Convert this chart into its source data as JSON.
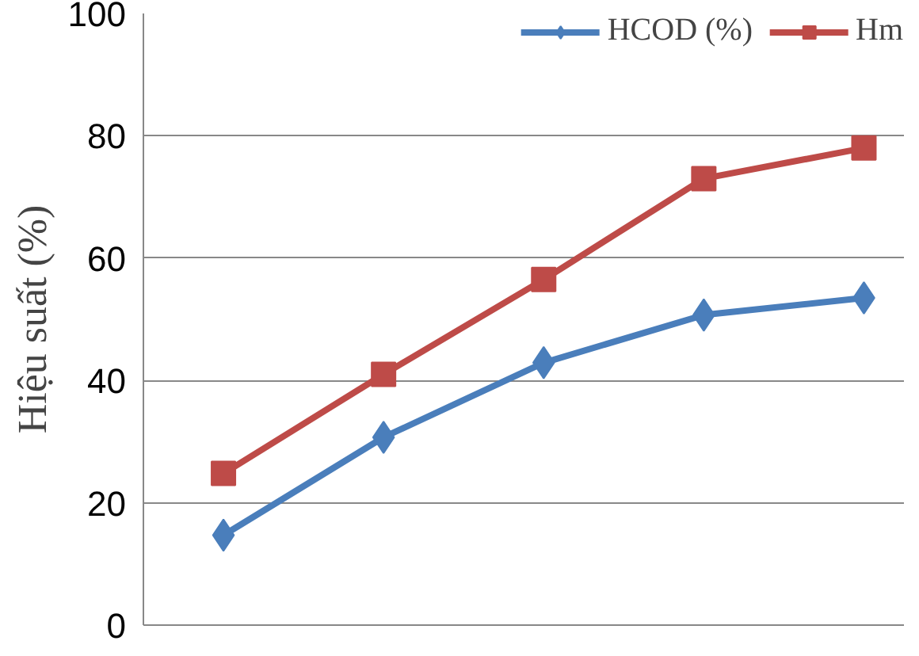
{
  "chart_data": {
    "type": "line",
    "ylabel": "Hiệu suất (%)",
    "categories": [
      null,
      null,
      null,
      null,
      null
    ],
    "series": [
      {
        "name": "HCOD (%)",
        "color": "#4a7ebb",
        "marker": "diamond",
        "values": [
          14.7,
          30.7,
          42.9,
          50.7,
          53.5
        ]
      },
      {
        "name": "Hm",
        "color": "#be4b48",
        "marker": "square",
        "values": [
          24.8,
          41,
          56.5,
          73,
          78
        ]
      }
    ],
    "ylim": [
      0,
      100
    ],
    "yticks": [
      0,
      20,
      40,
      60,
      80,
      100
    ],
    "grid": "y",
    "legend": "top right",
    "line_style": "solid"
  }
}
